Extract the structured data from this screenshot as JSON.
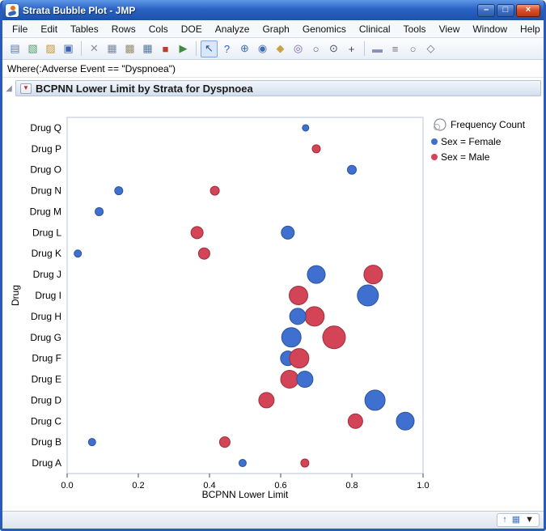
{
  "window": {
    "title": "Strata Bubble Plot - JMP",
    "buttons": [
      {
        "name": "minimize-button",
        "glyph": "–"
      },
      {
        "name": "maximize-button",
        "glyph": "□"
      },
      {
        "name": "close-button",
        "glyph": "×"
      }
    ]
  },
  "menu": {
    "items": [
      "File",
      "Edit",
      "Tables",
      "Rows",
      "Cols",
      "DOE",
      "Analyze",
      "Graph",
      "Genomics",
      "Clinical",
      "Tools",
      "View",
      "Window",
      "Help"
    ]
  },
  "toolbar": {
    "items": [
      {
        "name": "new-data-table-icon",
        "glyph": "▤",
        "color": "#4a7ec0"
      },
      {
        "name": "new-journal-icon",
        "glyph": "▧",
        "color": "#52a06a"
      },
      {
        "name": "open-icon",
        "glyph": "▨",
        "color": "#c8963a"
      },
      {
        "name": "save-icon",
        "glyph": "▣",
        "color": "#3a62b0"
      },
      {
        "type": "sep"
      },
      {
        "name": "cut-icon",
        "glyph": "✕",
        "color": "#8a8f9a"
      },
      {
        "name": "copy-icon",
        "glyph": "▦",
        "color": "#7b88a0"
      },
      {
        "name": "paste-icon",
        "glyph": "▩",
        "color": "#9a8f72"
      },
      {
        "name": "data-grid-icon",
        "glyph": "▦",
        "color": "#55779f"
      },
      {
        "name": "pdf-icon",
        "glyph": "■",
        "color": "#c03a2e"
      },
      {
        "name": "run-script-icon",
        "glyph": "▶",
        "color": "#3f8a3f"
      },
      {
        "type": "sep"
      },
      {
        "name": "arrow-tool-icon",
        "glyph": "↖",
        "color": "#2f4f7f",
        "selected": true
      },
      {
        "name": "help-tool-icon",
        "glyph": "?",
        "color": "#2f5fbf"
      },
      {
        "name": "move-tool-icon",
        "glyph": "⊕",
        "color": "#3f6faf"
      },
      {
        "name": "globe-tool-icon",
        "glyph": "◉",
        "color": "#3f6faf"
      },
      {
        "name": "grabber-tool-icon",
        "glyph": "◆",
        "color": "#caa24a"
      },
      {
        "name": "brush-tool-icon",
        "glyph": "◎",
        "color": "#7f5fae"
      },
      {
        "name": "lasso-tool-icon",
        "glyph": "○",
        "color": "#555f6e"
      },
      {
        "name": "magnifier-tool-icon",
        "glyph": "⊙",
        "color": "#44506a"
      },
      {
        "name": "crosshair-tool-icon",
        "glyph": "+",
        "color": "#333f55"
      },
      {
        "type": "sep"
      },
      {
        "name": "annotate-text-icon",
        "glyph": "▬",
        "color": "#8890bb"
      },
      {
        "name": "annotate-lines-icon",
        "glyph": "≡",
        "color": "#66707f"
      },
      {
        "name": "annotate-oval-icon",
        "glyph": "○",
        "color": "#66707f"
      },
      {
        "name": "annotate-polygon-icon",
        "glyph": "◇",
        "color": "#66707f"
      }
    ]
  },
  "where_bar": {
    "text": "Where(:Adverse Event == \"Dyspnoea\")"
  },
  "report": {
    "title": "BCPNN Lower Limit by Strata for Dyspnoea"
  },
  "status_bar": {
    "icons": [
      {
        "name": "go-top-icon",
        "glyph": "↑",
        "color": "#2f66c0"
      },
      {
        "name": "window-grid-icon",
        "glyph": "▦",
        "color": "#3f78c8"
      },
      {
        "name": "dropdown-icon",
        "glyph": "▼",
        "color": "#222"
      }
    ]
  },
  "chart_data": {
    "type": "scatter",
    "subtype": "bubble",
    "title": "BCPNN Lower Limit by Strata for Dyspnoea",
    "xlabel": "BCPNN Lower Limit",
    "ylabel": "Drug",
    "xlim": [
      0.0,
      1.0
    ],
    "xticks": [
      0.0,
      0.2,
      0.4,
      0.6,
      0.8,
      1.0
    ],
    "grid": false,
    "categories": [
      "Drug Q",
      "Drug P",
      "Drug O",
      "Drug N",
      "Drug M",
      "Drug L",
      "Drug K",
      "Drug J",
      "Drug I",
      "Drug H",
      "Drug G",
      "Drug F",
      "Drug E",
      "Drug D",
      "Drug C",
      "Drug B",
      "Drug A"
    ],
    "colors": {
      "female_fill": "#3f70d0",
      "female_stroke": "#2a529e",
      "male_fill": "#d24456",
      "male_stroke": "#9e2f3c"
    },
    "legend": {
      "position": "right",
      "size_label": "Frequency Count",
      "entries": [
        {
          "label": "Sex = Female",
          "color": "#3f70d0"
        },
        {
          "label": "Sex = Male",
          "color": "#d24456"
        }
      ]
    },
    "points": [
      {
        "drug": "Drug Q",
        "sex": "Female",
        "x": 0.67,
        "size": 4
      },
      {
        "drug": "Drug P",
        "sex": "Male",
        "x": 0.7,
        "size": 5
      },
      {
        "drug": "Drug O",
        "sex": "Female",
        "x": 0.8,
        "size": 5.5
      },
      {
        "drug": "Drug N",
        "sex": "Female",
        "x": 0.145,
        "size": 5
      },
      {
        "drug": "Drug N",
        "sex": "Male",
        "x": 0.415,
        "size": 5.5
      },
      {
        "drug": "Drug M",
        "sex": "Female",
        "x": 0.09,
        "size": 5
      },
      {
        "drug": "Drug L",
        "sex": "Male",
        "x": 0.365,
        "size": 7.5
      },
      {
        "drug": "Drug L",
        "sex": "Female",
        "x": 0.62,
        "size": 8
      },
      {
        "drug": "Drug K",
        "sex": "Female",
        "x": 0.03,
        "size": 4.5
      },
      {
        "drug": "Drug K",
        "sex": "Male",
        "x": 0.385,
        "size": 7
      },
      {
        "drug": "Drug J",
        "sex": "Female",
        "x": 0.7,
        "size": 11
      },
      {
        "drug": "Drug J",
        "sex": "Male",
        "x": 0.86,
        "size": 11.5
      },
      {
        "drug": "Drug I",
        "sex": "Male",
        "x": 0.65,
        "size": 11.5
      },
      {
        "drug": "Drug I",
        "sex": "Female",
        "x": 0.845,
        "size": 13
      },
      {
        "drug": "Drug H",
        "sex": "Male",
        "x": 0.695,
        "size": 12
      },
      {
        "drug": "Drug H",
        "sex": "Female",
        "x": 0.648,
        "size": 10
      },
      {
        "drug": "Drug G",
        "sex": "Female",
        "x": 0.63,
        "size": 12
      },
      {
        "drug": "Drug G",
        "sex": "Male",
        "x": 0.75,
        "size": 14
      },
      {
        "drug": "Drug F",
        "sex": "Female",
        "x": 0.62,
        "size": 9
      },
      {
        "drug": "Drug F",
        "sex": "Male",
        "x": 0.652,
        "size": 12
      },
      {
        "drug": "Drug E",
        "sex": "Male",
        "x": 0.625,
        "size": 11
      },
      {
        "drug": "Drug E",
        "sex": "Female",
        "x": 0.668,
        "size": 10
      },
      {
        "drug": "Drug D",
        "sex": "Male",
        "x": 0.56,
        "size": 9.5
      },
      {
        "drug": "Drug D",
        "sex": "Female",
        "x": 0.865,
        "size": 12.5
      },
      {
        "drug": "Drug C",
        "sex": "Male",
        "x": 0.81,
        "size": 9
      },
      {
        "drug": "Drug C",
        "sex": "Female",
        "x": 0.95,
        "size": 11
      },
      {
        "drug": "Drug B",
        "sex": "Female",
        "x": 0.07,
        "size": 4.5
      },
      {
        "drug": "Drug B",
        "sex": "Male",
        "x": 0.443,
        "size": 6.5
      },
      {
        "drug": "Drug A",
        "sex": "Female",
        "x": 0.493,
        "size": 4.5
      },
      {
        "drug": "Drug A",
        "sex": "Male",
        "x": 0.668,
        "size": 5
      }
    ]
  }
}
